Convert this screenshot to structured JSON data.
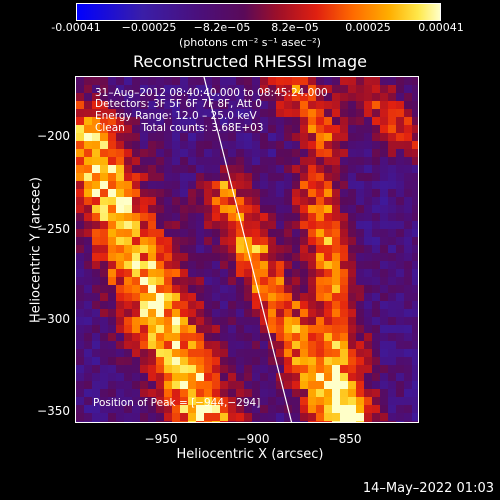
{
  "colorbar": {
    "ticks": [
      "-0.00041",
      "−0.00025",
      "−8.2e−05",
      "8.2e−05",
      "0.00025",
      "0.00041"
    ],
    "units": "(photons cm⁻² s⁻¹ asec⁻²)"
  },
  "title": "Reconstructed RHESSI Image",
  "info": {
    "line1": "31–Aug–2012 08:40:40.000 to 08:45:24.000",
    "line2": "Detectors: 3F 5F 6F 7F 8F, Att 0",
    "line3": "Energy Range: 12.0 – 25.0 keV",
    "line4": "Clean     Total counts: 3.68E+03",
    "peak": "Position of Peak = [−944,−294]"
  },
  "axes": {
    "xlabel": "Heliocentric X (arcsec)",
    "ylabel": "Heliocentric Y (arcsec)",
    "xticks": [
      "−950",
      "−900",
      "−850"
    ],
    "yticks": [
      "−200",
      "−250",
      "−300",
      "−350"
    ]
  },
  "timestamp": "14–May–2022 01:03",
  "colors": {
    "limb_line": "#ffffff",
    "background": "#000000"
  }
}
